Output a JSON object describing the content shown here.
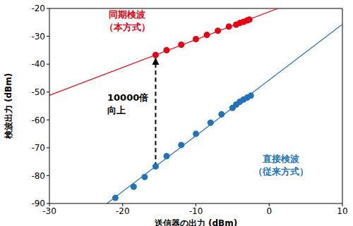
{
  "chart_data": {
    "type": "scatter",
    "xlabel": "送信器の出力 (dBm)",
    "ylabel": "検波出力 (dBm)",
    "xlim": [
      -30,
      10
    ],
    "xticks": [
      -30,
      -20,
      -10,
      0,
      10
    ],
    "ylim": [
      -90,
      -20
    ],
    "yticks": [
      -90,
      -80,
      -70,
      -60,
      -50,
      -40,
      -30,
      -20
    ],
    "grid": false,
    "series": [
      {
        "name": "同期検波（本方式）",
        "color": "#e60012",
        "marker": "circle",
        "x": [
          -15.5,
          -14,
          -12,
          -10,
          -8.5,
          -7,
          -5.5,
          -4.5,
          -4,
          -3.5,
          -3,
          -2.7
        ],
        "values": [
          -36.7,
          -35,
          -33,
          -31,
          -29.5,
          -28,
          -26.5,
          -25.8,
          -25.2,
          -24.8,
          -24.3,
          -24
        ],
        "fit": {
          "x": [
            -30,
            1.2
          ],
          "values": [
            -51.2,
            -20
          ]
        }
      },
      {
        "name": "直接検波（従来方式）",
        "color": "#2272b8",
        "marker": "circle",
        "x": [
          -21,
          -18.5,
          -17,
          -15.5,
          -14,
          -12,
          -10,
          -8,
          -6.5,
          -5,
          -4.5,
          -4,
          -3.5,
          -3,
          -2.5
        ],
        "values": [
          -88,
          -84,
          -80.5,
          -76.7,
          -73,
          -69,
          -65,
          -61,
          -58,
          -55.7,
          -54.5,
          -53.5,
          -52.7,
          -52,
          -51.3
        ],
        "fit": {
          "x": [
            -22.15,
            10
          ],
          "values": [
            -90,
            -25.7
          ]
        }
      }
    ],
    "annotations": [
      {
        "text": [
          "10000倍",
          "向上"
        ],
        "x": -15.5,
        "y_from": -76.7,
        "y_to": -36.7
      }
    ]
  }
}
